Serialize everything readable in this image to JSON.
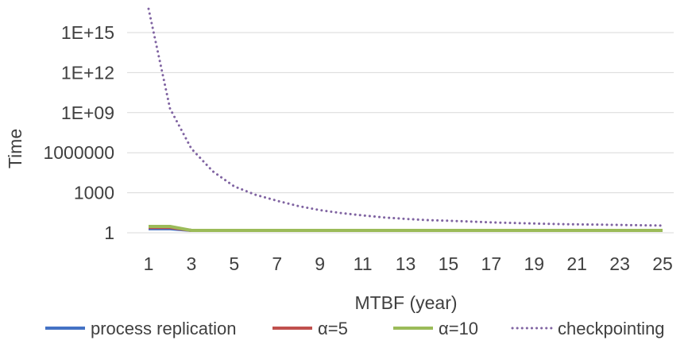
{
  "chart_data": {
    "type": "line",
    "title": "",
    "xlabel": "MTBF (year)",
    "ylabel": "Time",
    "y_scale": "log",
    "ylim": [
      1,
      1e+16
    ],
    "y_ticks": [
      {
        "value": 1,
        "label": "1"
      },
      {
        "value": 1000,
        "label": "1000"
      },
      {
        "value": 1000000,
        "label": "1000000"
      },
      {
        "value": 1000000000,
        "label": "1E+09"
      },
      {
        "value": 1000000000000,
        "label": "1E+12"
      },
      {
        "value": 1000000000000000,
        "label": "1E+15"
      }
    ],
    "x": [
      1,
      2,
      3,
      4,
      5,
      6,
      7,
      8,
      9,
      10,
      11,
      12,
      13,
      14,
      15,
      16,
      17,
      18,
      19,
      20,
      21,
      22,
      23,
      24,
      25
    ],
    "x_tick_labels": [
      "1",
      "3",
      "5",
      "7",
      "9",
      "11",
      "13",
      "15",
      "17",
      "19",
      "21",
      "23",
      "25"
    ],
    "grid": "horizontal",
    "legend_position": "bottom",
    "series": [
      {
        "name": "process replication",
        "color": "#4472C4",
        "style": "solid",
        "values": [
          2,
          2,
          1.5,
          1.5,
          1.5,
          1.5,
          1.5,
          1.5,
          1.5,
          1.5,
          1.5,
          1.5,
          1.5,
          1.5,
          1.5,
          1.5,
          1.5,
          1.5,
          1.5,
          1.5,
          1.5,
          1.5,
          1.5,
          1.5,
          1.5
        ]
      },
      {
        "name": "α=5",
        "color": "#C0504D",
        "style": "solid",
        "values": [
          2.5,
          2.5,
          1.5,
          1.5,
          1.5,
          1.5,
          1.5,
          1.5,
          1.5,
          1.5,
          1.5,
          1.5,
          1.5,
          1.5,
          1.5,
          1.5,
          1.5,
          1.5,
          1.5,
          1.5,
          1.5,
          1.5,
          1.5,
          1.5,
          1.5
        ]
      },
      {
        "name": "α=10",
        "color": "#9BBB59",
        "style": "solid",
        "values": [
          3,
          3,
          1.5,
          1.5,
          1.5,
          1.5,
          1.5,
          1.5,
          1.5,
          1.5,
          1.5,
          1.5,
          1.5,
          1.5,
          1.5,
          1.5,
          1.5,
          1.5,
          1.5,
          1.5,
          1.5,
          1.5,
          1.5,
          1.5,
          1.5
        ]
      },
      {
        "name": "checkpointing",
        "color": "#8064A2",
        "style": "dotted",
        "values": [
          6e+16,
          2000000000.0,
          2000000.0,
          40000,
          3000,
          700,
          250,
          100,
          50,
          30,
          20,
          14,
          11,
          9,
          8,
          7,
          6,
          5.5,
          5,
          4.6,
          4.3,
          4.1,
          3.9,
          3.7,
          3.5
        ]
      }
    ]
  }
}
